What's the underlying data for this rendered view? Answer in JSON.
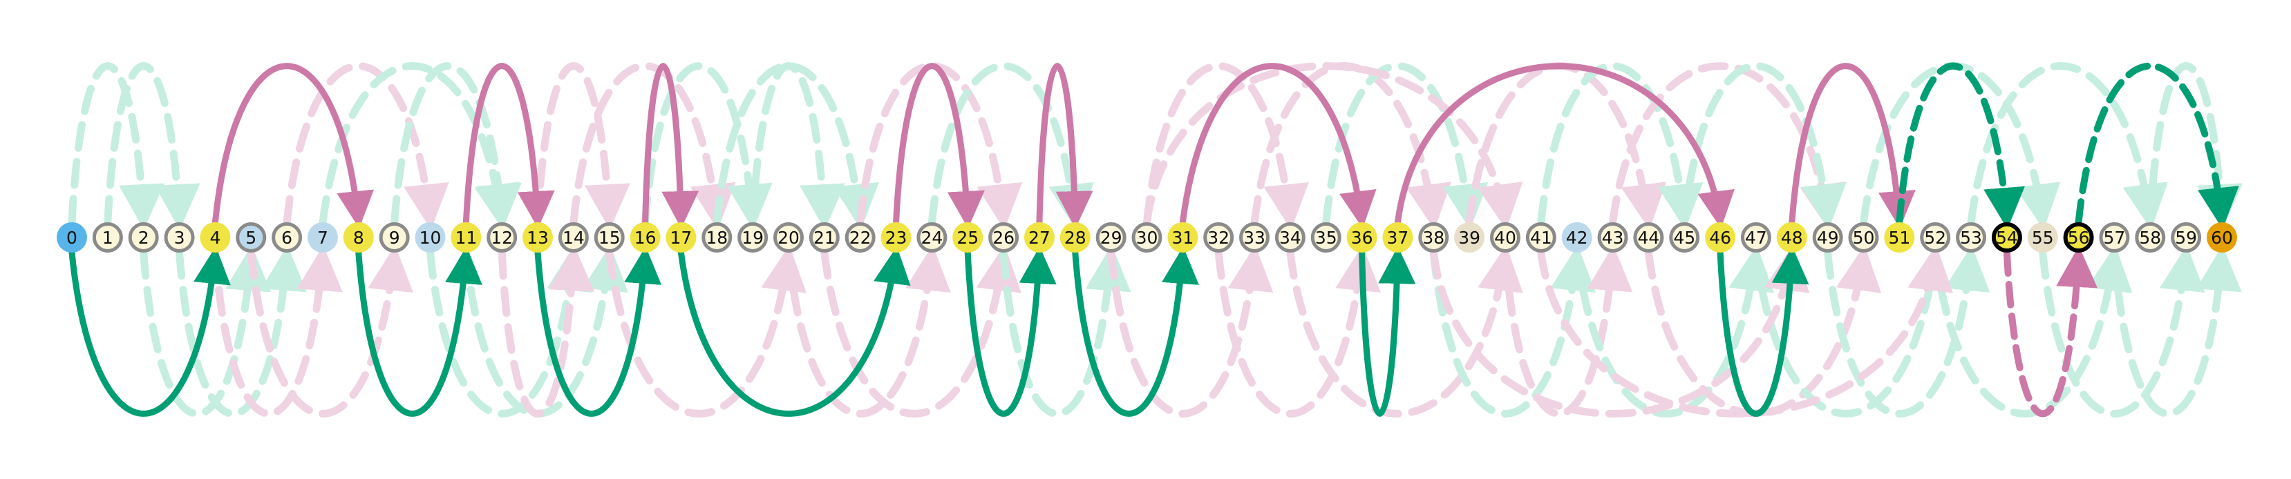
{
  "diagram": {
    "nodes": [
      {
        "label": "0",
        "kind": "start"
      },
      {
        "label": "1",
        "kind": "plain"
      },
      {
        "label": "2",
        "kind": "plain"
      },
      {
        "label": "3",
        "kind": "plain"
      },
      {
        "label": "4",
        "kind": "visited"
      },
      {
        "label": "5",
        "kind": "blue-ringed"
      },
      {
        "label": "6",
        "kind": "plain"
      },
      {
        "label": "7",
        "kind": "blue"
      },
      {
        "label": "8",
        "kind": "visited"
      },
      {
        "label": "9",
        "kind": "plain"
      },
      {
        "label": "10",
        "kind": "blue"
      },
      {
        "label": "11",
        "kind": "visited"
      },
      {
        "label": "12",
        "kind": "plain"
      },
      {
        "label": "13",
        "kind": "visited"
      },
      {
        "label": "14",
        "kind": "plain"
      },
      {
        "label": "15",
        "kind": "plain"
      },
      {
        "label": "16",
        "kind": "visited"
      },
      {
        "label": "17",
        "kind": "visited"
      },
      {
        "label": "18",
        "kind": "plain"
      },
      {
        "label": "19",
        "kind": "plain"
      },
      {
        "label": "20",
        "kind": "plain"
      },
      {
        "label": "21",
        "kind": "plain"
      },
      {
        "label": "22",
        "kind": "plain"
      },
      {
        "label": "23",
        "kind": "visited"
      },
      {
        "label": "24",
        "kind": "plain"
      },
      {
        "label": "25",
        "kind": "visited"
      },
      {
        "label": "26",
        "kind": "plain"
      },
      {
        "label": "27",
        "kind": "visited"
      },
      {
        "label": "28",
        "kind": "visited"
      },
      {
        "label": "29",
        "kind": "plain"
      },
      {
        "label": "30",
        "kind": "plain"
      },
      {
        "label": "31",
        "kind": "visited"
      },
      {
        "label": "32",
        "kind": "plain"
      },
      {
        "label": "33",
        "kind": "plain"
      },
      {
        "label": "34",
        "kind": "plain"
      },
      {
        "label": "35",
        "kind": "plain"
      },
      {
        "label": "36",
        "kind": "visited"
      },
      {
        "label": "37",
        "kind": "visited"
      },
      {
        "label": "38",
        "kind": "plain"
      },
      {
        "label": "39",
        "kind": "tan"
      },
      {
        "label": "40",
        "kind": "plain"
      },
      {
        "label": "41",
        "kind": "plain"
      },
      {
        "label": "42",
        "kind": "blue"
      },
      {
        "label": "43",
        "kind": "plain"
      },
      {
        "label": "44",
        "kind": "plain"
      },
      {
        "label": "45",
        "kind": "plain"
      },
      {
        "label": "46",
        "kind": "visited"
      },
      {
        "label": "47",
        "kind": "plain"
      },
      {
        "label": "48",
        "kind": "visited"
      },
      {
        "label": "49",
        "kind": "plain"
      },
      {
        "label": "50",
        "kind": "plain"
      },
      {
        "label": "51",
        "kind": "visited"
      },
      {
        "label": "52",
        "kind": "plain"
      },
      {
        "label": "53",
        "kind": "plain"
      },
      {
        "label": "54",
        "kind": "current"
      },
      {
        "label": "55",
        "kind": "tan"
      },
      {
        "label": "56",
        "kind": "current"
      },
      {
        "label": "57",
        "kind": "plain"
      },
      {
        "label": "58",
        "kind": "plain"
      },
      {
        "label": "59",
        "kind": "plain"
      },
      {
        "label": "60",
        "kind": "goal"
      }
    ],
    "solid_edges": [
      {
        "from": 0,
        "to": 4,
        "side": "below"
      },
      {
        "from": 4,
        "to": 8,
        "side": "above"
      },
      {
        "from": 8,
        "to": 11,
        "side": "below"
      },
      {
        "from": 11,
        "to": 13,
        "side": "above"
      },
      {
        "from": 13,
        "to": 16,
        "side": "below"
      },
      {
        "from": 16,
        "to": 17,
        "side": "above"
      },
      {
        "from": 17,
        "to": 23,
        "side": "below"
      },
      {
        "from": 23,
        "to": 25,
        "side": "above"
      },
      {
        "from": 25,
        "to": 27,
        "side": "below"
      },
      {
        "from": 27,
        "to": 28,
        "side": "above"
      },
      {
        "from": 28,
        "to": 31,
        "side": "below"
      },
      {
        "from": 31,
        "to": 36,
        "side": "above"
      },
      {
        "from": 36,
        "to": 37,
        "side": "below"
      },
      {
        "from": 37,
        "to": 46,
        "side": "above"
      },
      {
        "from": 46,
        "to": 48,
        "side": "below"
      },
      {
        "from": 48,
        "to": 51,
        "side": "above"
      }
    ],
    "dashed_bold_edges": [
      {
        "from": 51,
        "to": 54,
        "side": "above",
        "color": "green"
      },
      {
        "from": 54,
        "to": 56,
        "side": "below",
        "color": "pink"
      },
      {
        "from": 56,
        "to": 60,
        "side": "above",
        "color": "green"
      }
    ],
    "faint_edges": [
      {
        "from": 0,
        "to": 2,
        "side": "above",
        "color": "mint"
      },
      {
        "from": 1,
        "to": 3,
        "side": "above",
        "color": "mint"
      },
      {
        "from": 2,
        "to": 5,
        "side": "below",
        "color": "mint"
      },
      {
        "from": 3,
        "to": 6,
        "side": "below",
        "color": "mint"
      },
      {
        "from": 4,
        "to": 7,
        "side": "below",
        "color": "pink"
      },
      {
        "from": 5,
        "to": 9,
        "side": "below",
        "color": "pink"
      },
      {
        "from": 6,
        "to": 10,
        "side": "above",
        "color": "pink"
      },
      {
        "from": 7,
        "to": 12,
        "side": "above",
        "color": "mint"
      },
      {
        "from": 9,
        "to": 12,
        "side": "above",
        "color": "mint"
      },
      {
        "from": 10,
        "to": 14,
        "side": "below",
        "color": "mint"
      },
      {
        "from": 11,
        "to": 15,
        "side": "below",
        "color": "mint"
      },
      {
        "from": 12,
        "to": 14,
        "side": "below",
        "color": "pink"
      },
      {
        "from": 13,
        "to": 15,
        "side": "above",
        "color": "pink"
      },
      {
        "from": 14,
        "to": 18,
        "side": "above",
        "color": "pink"
      },
      {
        "from": 15,
        "to": 20,
        "side": "below",
        "color": "pink"
      },
      {
        "from": 16,
        "to": 19,
        "side": "above",
        "color": "mint"
      },
      {
        "from": 18,
        "to": 22,
        "side": "above",
        "color": "mint"
      },
      {
        "from": 19,
        "to": 21,
        "side": "above",
        "color": "mint"
      },
      {
        "from": 20,
        "to": 24,
        "side": "below",
        "color": "pink"
      },
      {
        "from": 21,
        "to": 26,
        "side": "below",
        "color": "pink"
      },
      {
        "from": 22,
        "to": 26,
        "side": "above",
        "color": "pink"
      },
      {
        "from": 24,
        "to": 28,
        "side": "above",
        "color": "mint"
      },
      {
        "from": 26,
        "to": 29,
        "side": "below",
        "color": "mint"
      },
      {
        "from": 29,
        "to": 33,
        "side": "below",
        "color": "pink"
      },
      {
        "from": 30,
        "to": 34,
        "side": "above",
        "color": "pink"
      },
      {
        "from": 32,
        "to": 36,
        "side": "below",
        "color": "pink"
      },
      {
        "from": 33,
        "to": 38,
        "side": "above",
        "color": "pink"
      },
      {
        "from": 34,
        "to": 40,
        "side": "below",
        "color": "pink"
      },
      {
        "from": 35,
        "to": 39,
        "side": "above",
        "color": "mint"
      },
      {
        "from": 38,
        "to": 42,
        "side": "below",
        "color": "mint"
      },
      {
        "from": 39,
        "to": 44,
        "side": "above",
        "color": "pink"
      },
      {
        "from": 40,
        "to": 43,
        "side": "below",
        "color": "pink"
      },
      {
        "from": 41,
        "to": 45,
        "side": "above",
        "color": "mint"
      },
      {
        "from": 42,
        "to": 47,
        "side": "below",
        "color": "mint"
      },
      {
        "from": 43,
        "to": 49,
        "side": "above",
        "color": "pink"
      },
      {
        "from": 44,
        "to": 50,
        "side": "below",
        "color": "pink"
      },
      {
        "from": 45,
        "to": 49,
        "side": "above",
        "color": "mint"
      },
      {
        "from": 47,
        "to": 52,
        "side": "below",
        "color": "mint"
      },
      {
        "from": 49,
        "to": 53,
        "side": "below",
        "color": "mint"
      },
      {
        "from": 50,
        "to": 55,
        "side": "above",
        "color": "mint"
      },
      {
        "from": 52,
        "to": 57,
        "side": "below",
        "color": "mint"
      },
      {
        "from": 53,
        "to": 58,
        "side": "above",
        "color": "mint"
      },
      {
        "from": 55,
        "to": 59,
        "side": "below",
        "color": "mint"
      },
      {
        "from": 57,
        "to": 60,
        "side": "below",
        "color": "mint"
      },
      {
        "from": 58,
        "to": 60,
        "side": "above",
        "color": "mint"
      },
      {
        "from": 38,
        "to": 48,
        "side": "below",
        "color": "pink"
      },
      {
        "from": 30,
        "to": 40,
        "side": "above",
        "color": "pink"
      },
      {
        "from": 41,
        "to": 52,
        "side": "below",
        "color": "pink"
      }
    ],
    "colors": {
      "start": "#56b4e9",
      "visited": "#f0e442",
      "goal": "#e69f00",
      "plain_fill": "#fbf6d9",
      "plain_ring": "#8a8a8a",
      "blue": "#bcd9ec",
      "tan": "#e8dfc8",
      "current_ring": "#000000",
      "solid_green": "#009e73",
      "solid_pink": "#cc79a7",
      "faint_mint": "#c6eee0",
      "faint_pink": "#efd3e3"
    }
  }
}
